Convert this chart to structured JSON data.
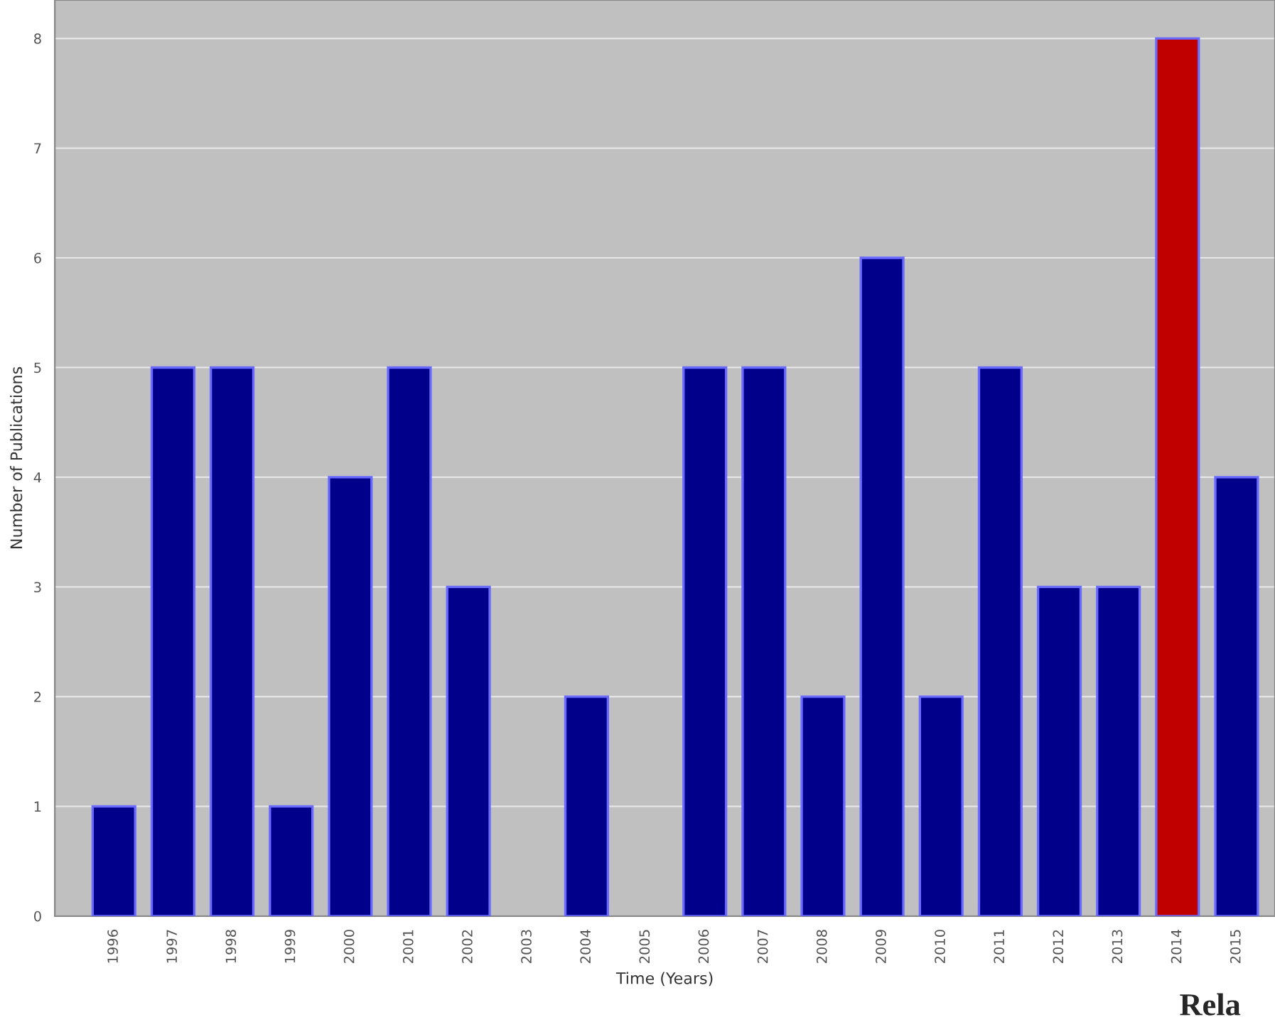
{
  "chart_data": {
    "type": "bar",
    "xlabel": "Time (Years)",
    "ylabel": "Number of Publications",
    "categories": [
      "1996",
      "1997",
      "1998",
      "1999",
      "2000",
      "2001",
      "2002",
      "2003",
      "2004",
      "2005",
      "2006",
      "2007",
      "2008",
      "2009",
      "2010",
      "2011",
      "2012",
      "2013",
      "2014",
      "2015"
    ],
    "values": [
      1,
      5,
      5,
      1,
      4,
      5,
      3,
      0,
      2,
      0,
      5,
      5,
      2,
      6,
      2,
      5,
      3,
      3,
      8,
      4
    ],
    "colors": [
      "#00008b",
      "#00008b",
      "#00008b",
      "#00008b",
      "#00008b",
      "#00008b",
      "#00008b",
      "#00008b",
      "#00008b",
      "#00008b",
      "#00008b",
      "#00008b",
      "#00008b",
      "#00008b",
      "#00008b",
      "#00008b",
      "#00008b",
      "#00008b",
      "#c00000",
      "#00008b"
    ],
    "ylim": [
      0,
      8.35
    ],
    "yticks": [
      0,
      1,
      2,
      3,
      4,
      5,
      6,
      7,
      8
    ],
    "grid": "y",
    "annotations": [
      "Rela"
    ]
  }
}
